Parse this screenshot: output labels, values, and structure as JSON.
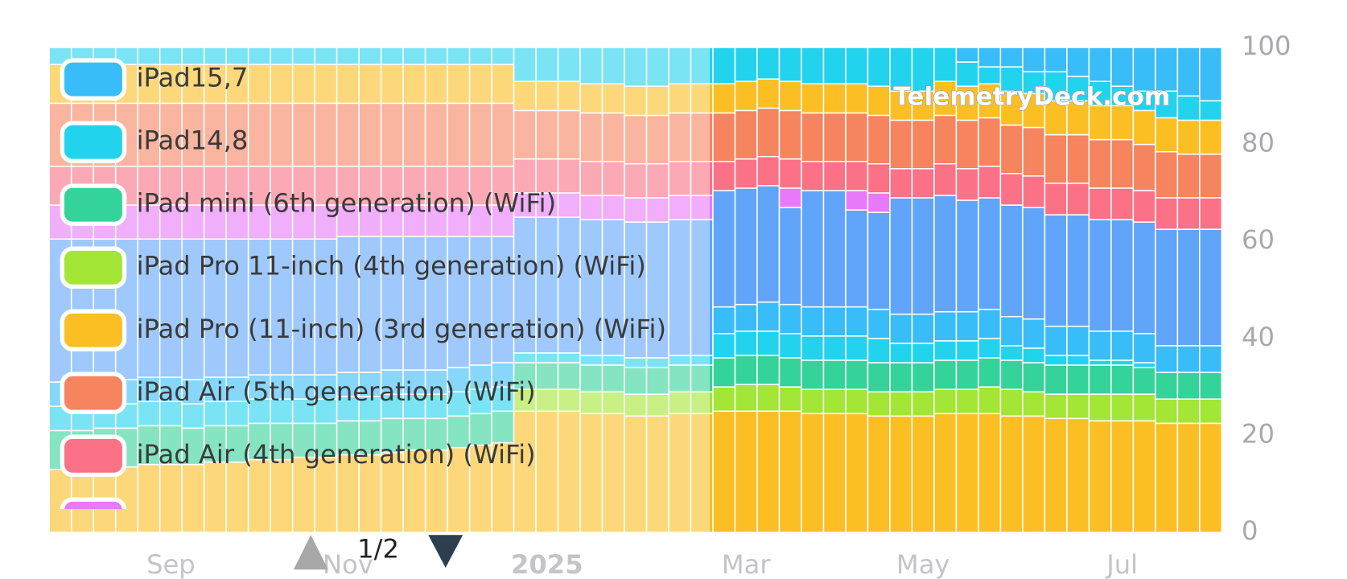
{
  "chart_data": {
    "type": "stacked-bar",
    "categories": [
      null,
      null,
      null,
      null,
      null,
      "Sep",
      null,
      null,
      null,
      null,
      null,
      null,
      null,
      "Nov",
      null,
      null,
      null,
      null,
      null,
      null,
      null,
      null,
      "2025",
      null,
      null,
      null,
      null,
      null,
      null,
      null,
      null,
      "Mar",
      null,
      null,
      null,
      null,
      null,
      null,
      null,
      "May",
      null,
      null,
      null,
      null,
      null,
      null,
      null,
      null,
      "Jul",
      null,
      null,
      null,
      null
    ],
    "series": [
      {
        "name": "iPad Pro (11-inch) (3rd generation) (WiFi)",
        "color": "#fbbf24",
        "values": [
          13,
          13,
          13.5,
          13.5,
          14,
          14,
          14,
          14.5,
          14.5,
          15,
          15,
          15.5,
          15.5,
          16,
          16,
          16.5,
          17,
          17,
          17.5,
          18,
          18.5,
          25,
          25,
          25,
          24.5,
          24.5,
          24,
          24,
          24.5,
          24.5,
          25,
          25,
          25,
          25,
          24.5,
          24.5,
          24.5,
          24,
          24,
          24,
          24.5,
          24.5,
          24.5,
          24,
          24,
          23.5,
          23.5,
          23,
          23,
          23,
          22.5,
          22.5,
          22.5
        ]
      },
      {
        "name": "iPad Pro 11-inch (4th generation) (WiFi)",
        "color": "#a3e635",
        "values": [
          0,
          0,
          0,
          0,
          0,
          0,
          0,
          0,
          0,
          0,
          0,
          0,
          0,
          0,
          0,
          0,
          0,
          0,
          0,
          0,
          0,
          4.5,
          4.5,
          4.5,
          4.5,
          4.5,
          4.5,
          4.5,
          4.5,
          4.5,
          5,
          5.5,
          5.5,
          5,
          5,
          5,
          5,
          5,
          5,
          5,
          5,
          5,
          5.5,
          5.5,
          5,
          5,
          5,
          5.5,
          5.5,
          5.5,
          5,
          5,
          5
        ]
      },
      {
        "name": "iPad mini (6th generation) (WiFi)",
        "color": "#34d399",
        "values": [
          8,
          8,
          8,
          8,
          8,
          8,
          7.5,
          7.5,
          7.5,
          7.5,
          7.5,
          7,
          7,
          7,
          7,
          7,
          6.5,
          6.5,
          6.5,
          6.5,
          6.5,
          5.5,
          5.5,
          5.5,
          5.5,
          5.5,
          5.5,
          5.5,
          5.5,
          5.5,
          6,
          6,
          6,
          6,
          6,
          6,
          6,
          6,
          6,
          6,
          6,
          6,
          6,
          6,
          6,
          6,
          6,
          6,
          6,
          5.5,
          5.5,
          5.5,
          5.5
        ]
      },
      {
        "name": "iPad14,8",
        "color": "#22d3ee",
        "values": [
          5,
          5,
          5,
          5,
          5,
          5,
          5,
          5,
          5,
          5,
          5,
          5,
          5,
          5,
          5,
          5,
          5,
          5,
          5,
          5,
          5,
          2,
          2,
          2,
          2,
          2,
          2,
          2,
          2,
          2,
          5,
          5,
          5,
          5,
          5,
          5,
          5,
          5,
          4,
          4,
          4,
          4,
          4,
          3,
          3,
          2,
          2,
          1,
          1,
          1,
          0,
          0,
          0
        ]
      },
      {
        "name": "iPad15,7",
        "color": "#38bdf8",
        "values": [
          5,
          5,
          5,
          5,
          5,
          5,
          5,
          5,
          5,
          5,
          5,
          5,
          5,
          5,
          5,
          5,
          5,
          5,
          5,
          5,
          5,
          0,
          0,
          0,
          0,
          0,
          0,
          0,
          0,
          0,
          5.5,
          5.5,
          6,
          6,
          6,
          6,
          6,
          6,
          6,
          6,
          6,
          6,
          6,
          6,
          6,
          6,
          6,
          6,
          6,
          6,
          5.5,
          5.5,
          5.5
        ]
      },
      {
        "color": "#60a5fa",
        "values": [
          29.5,
          29.5,
          29,
          29,
          28.5,
          28.5,
          29,
          28.5,
          28.5,
          28,
          28,
          28,
          28,
          28,
          28,
          27.5,
          27.5,
          27.5,
          27,
          26.5,
          26,
          28,
          28,
          28,
          28,
          28,
          28,
          28,
          28,
          28,
          24,
          24,
          24,
          20,
          24,
          24,
          20,
          20,
          24,
          24,
          24,
          23,
          23,
          23,
          23,
          23,
          23,
          23,
          23,
          23,
          24,
          24,
          24
        ]
      },
      {
        "color": "#e879f9",
        "values": [
          7,
          7,
          7,
          7,
          7,
          7,
          7,
          7,
          7,
          7,
          7,
          7,
          7,
          6.5,
          6.5,
          6.5,
          6.5,
          6.5,
          6.5,
          6.5,
          6.5,
          5,
          5,
          5,
          5,
          5,
          5,
          5,
          5,
          5,
          0,
          0,
          0,
          4,
          0,
          0,
          4,
          4,
          0,
          0,
          0,
          0,
          0,
          0,
          0,
          0,
          0,
          0,
          0,
          0,
          0,
          0,
          0
        ]
      },
      {
        "name": "iPad Air (4th generation) (WiFi)",
        "color": "#fb7185",
        "values": [
          8,
          8,
          8,
          8,
          8,
          8,
          8,
          8,
          8,
          8,
          8,
          8,
          8,
          8,
          8,
          8,
          8,
          8,
          8,
          8,
          8,
          7,
          7,
          7,
          7,
          7,
          7,
          7,
          7,
          7,
          6,
          6,
          6,
          6,
          6,
          6,
          6,
          6,
          6,
          6,
          6.5,
          6.5,
          6.5,
          6.5,
          6.5,
          6.5,
          6.5,
          6.5,
          6.5,
          6.5,
          6.5,
          6.5,
          6.5
        ]
      },
      {
        "name": "iPad Air (5th generation) (WiFi)",
        "color": "#f6845f",
        "values": [
          13,
          13,
          13,
          13,
          13,
          13,
          13,
          13,
          13,
          13,
          13,
          13,
          13,
          13,
          13,
          13,
          13,
          13,
          13,
          13,
          13,
          10,
          10,
          10,
          10,
          10,
          10,
          10,
          10,
          10,
          10,
          10,
          10,
          10,
          10,
          10,
          10,
          10,
          10,
          10,
          10,
          10,
          10,
          10,
          10,
          10,
          10,
          10,
          10,
          9.5,
          9.5,
          9,
          9
        ]
      },
      {
        "color": "#fbbf24",
        "values": [
          8,
          8,
          8,
          8,
          8,
          8,
          8,
          8,
          8,
          8,
          8,
          8,
          8,
          8,
          8,
          8,
          8,
          8,
          8,
          8,
          8,
          6,
          6,
          6,
          6,
          6,
          6,
          6,
          6,
          6,
          6,
          6,
          6,
          6,
          6,
          6,
          6,
          6,
          6,
          6,
          7,
          7,
          7,
          7,
          7,
          7,
          7,
          7,
          7,
          7,
          7,
          7,
          7
        ]
      },
      {
        "color": "#22d3ee",
        "values": [
          3.5,
          3.5,
          3.5,
          3.5,
          3.5,
          3.5,
          3.5,
          3.5,
          3.5,
          3.5,
          3.5,
          3.5,
          3.5,
          3.5,
          3.5,
          3.5,
          3.5,
          3.5,
          3.5,
          3.5,
          3.5,
          7,
          7,
          7,
          7.5,
          7.5,
          8,
          8,
          7.5,
          7.5,
          7.5,
          7,
          6.5,
          7,
          7.5,
          7.5,
          7.5,
          8,
          9,
          9,
          7,
          5,
          3.5,
          5,
          4.5,
          6,
          5,
          5,
          4,
          4,
          5.5,
          5,
          4
        ]
      },
      {
        "color": "#38bdf8",
        "values": [
          0,
          0,
          0,
          0,
          0,
          0,
          0,
          0,
          0,
          0,
          0,
          0,
          0,
          0,
          0,
          0,
          0,
          0,
          0,
          0,
          0,
          0,
          0,
          0,
          0,
          0,
          0,
          0,
          0,
          0,
          0,
          0,
          0,
          0,
          0,
          0,
          0,
          0,
          0,
          0,
          0,
          3,
          4,
          4,
          5,
          5,
          6,
          7,
          8,
          9,
          9,
          10,
          11
        ]
      }
    ],
    "ylim": [
      0,
      100
    ],
    "yticks": [
      0,
      20,
      40,
      60,
      80,
      100
    ],
    "grid": false,
    "legend_page": "1/2",
    "watermark": "TelemetryDeck.com"
  }
}
